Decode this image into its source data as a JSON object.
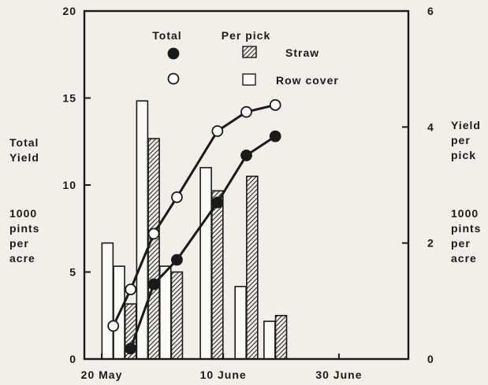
{
  "chart_data": {
    "type": "bar",
    "x_axis": {
      "ticks": [
        {
          "date": "20 May",
          "label": "20 May"
        },
        {
          "date": "10 June",
          "label": "10 June"
        },
        {
          "date": "30 June",
          "label": "30 June"
        }
      ],
      "range": [
        "17 May",
        "12 July"
      ]
    },
    "y_left": {
      "label_lines": [
        "Total",
        "Yield"
      ],
      "unit_lines": [
        "1000",
        "pints",
        "per",
        "acre"
      ],
      "range": [
        0,
        20
      ],
      "ticks": [
        0,
        5,
        10,
        15,
        20
      ]
    },
    "y_right": {
      "label_lines": [
        "Yield",
        "per",
        "pick"
      ],
      "unit_lines": [
        "1000",
        "pints",
        "per",
        "acre"
      ],
      "range": [
        0,
        6
      ],
      "ticks": [
        0,
        2,
        4,
        6
      ]
    },
    "legend": {
      "header_total": "Total",
      "header_per_pick": "Per pick",
      "straw_label": "Straw",
      "row_cover_label": "Row cover"
    },
    "bars": [
      {
        "date": "21 May",
        "series": "Row cover",
        "value": 2.0
      },
      {
        "date": "23 May",
        "series": "Row cover",
        "value": 1.6
      },
      {
        "date": "25 May",
        "series": "Straw",
        "value": 0.95
      },
      {
        "date": "27 May",
        "series": "Row cover",
        "value": 4.45
      },
      {
        "date": "29 May",
        "series": "Straw",
        "value": 3.8
      },
      {
        "date": "31 May",
        "series": "Row cover",
        "value": 1.6
      },
      {
        "date": "2 June",
        "series": "Straw",
        "value": 1.5
      },
      {
        "date": "7 June",
        "series": "Row cover",
        "value": 3.3
      },
      {
        "date": "9 June",
        "series": "Straw",
        "value": 2.9
      },
      {
        "date": "13 June",
        "series": "Row cover",
        "value": 1.25
      },
      {
        "date": "15 June",
        "series": "Straw",
        "value": 3.15
      },
      {
        "date": "18 June",
        "series": "Row cover",
        "value": 0.65
      },
      {
        "date": "20 June",
        "series": "Straw",
        "value": 0.75
      }
    ],
    "series": [
      {
        "name": "Row cover",
        "points": [
          {
            "date": "22 May",
            "value": 1.9
          },
          {
            "date": "25 May",
            "value": 4.0
          },
          {
            "date": "29 May",
            "value": 7.2
          },
          {
            "date": "2 June",
            "value": 9.3
          },
          {
            "date": "9 June",
            "value": 13.1
          },
          {
            "date": "14 June",
            "value": 14.2
          },
          {
            "date": "19 June",
            "value": 14.6
          }
        ]
      },
      {
        "name": "Straw",
        "points": [
          {
            "date": "25 May",
            "value": 0.6
          },
          {
            "date": "29 May",
            "value": 4.3
          },
          {
            "date": "2 June",
            "value": 5.7
          },
          {
            "date": "9 June",
            "value": 9.0
          },
          {
            "date": "14 June",
            "value": 11.7
          },
          {
            "date": "19 June",
            "value": 12.8
          }
        ]
      }
    ]
  }
}
